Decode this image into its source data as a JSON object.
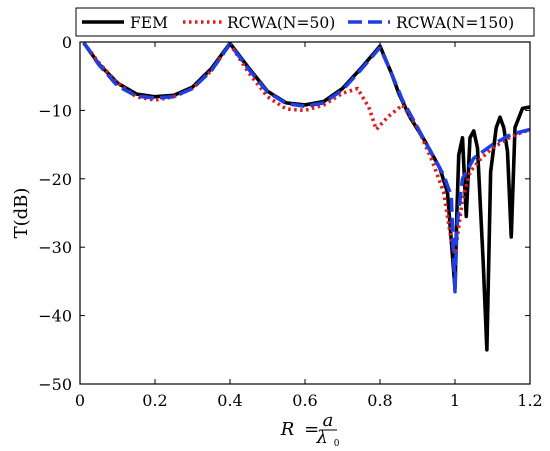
{
  "chart_data": {
    "type": "line",
    "xlabel": "R = a/λ0",
    "xlabel_parts": {
      "lhs": "R",
      "eq": "=",
      "num": "a",
      "den": "λ",
      "den_sub": "0"
    },
    "ylabel": "T(dB)",
    "xlim": [
      0,
      1.2
    ],
    "ylim": [
      -50,
      0
    ],
    "xticks": [
      0,
      0.2,
      0.4,
      0.6,
      0.8,
      1,
      1.2
    ],
    "xtick_labels": [
      "0",
      "0.2",
      "0.4",
      "0.6",
      "0.8",
      "1",
      "1.2"
    ],
    "yticks": [
      0,
      -10,
      -20,
      -30,
      -40,
      -50
    ],
    "ytick_labels": [
      "0",
      "−10",
      "−20",
      "−30",
      "−40",
      "−50"
    ],
    "grid": false,
    "legend_position": "top",
    "series": [
      {
        "name": "FEM",
        "color": "#000000",
        "style": "solid",
        "points": [
          [
            0.01,
            -0.1
          ],
          [
            0.05,
            -3.2
          ],
          [
            0.1,
            -6.0
          ],
          [
            0.15,
            -7.6
          ],
          [
            0.2,
            -8.0
          ],
          [
            0.25,
            -7.8
          ],
          [
            0.3,
            -6.6
          ],
          [
            0.35,
            -3.9
          ],
          [
            0.4,
            -0.2
          ],
          [
            0.45,
            -3.8
          ],
          [
            0.5,
            -7.2
          ],
          [
            0.55,
            -8.9
          ],
          [
            0.6,
            -9.2
          ],
          [
            0.65,
            -8.7
          ],
          [
            0.7,
            -6.8
          ],
          [
            0.75,
            -3.8
          ],
          [
            0.8,
            -0.6
          ],
          [
            0.83,
            -4.5
          ],
          [
            0.85,
            -7.5
          ],
          [
            0.88,
            -11.0
          ],
          [
            0.92,
            -14.5
          ],
          [
            0.96,
            -18.5
          ],
          [
            0.98,
            -22.0
          ],
          [
            1.0,
            -36.0
          ],
          [
            1.005,
            -25.0
          ],
          [
            1.01,
            -16.5
          ],
          [
            1.02,
            -14.0
          ],
          [
            1.03,
            -25.5
          ],
          [
            1.04,
            -14.0
          ],
          [
            1.05,
            -13.0
          ],
          [
            1.06,
            -15.5
          ],
          [
            1.075,
            -32.0
          ],
          [
            1.085,
            -45.0
          ],
          [
            1.095,
            -19.0
          ],
          [
            1.11,
            -12.5
          ],
          [
            1.12,
            -11.0
          ],
          [
            1.13,
            -12.5
          ],
          [
            1.14,
            -16.0
          ],
          [
            1.15,
            -28.5
          ],
          [
            1.16,
            -12.5
          ],
          [
            1.18,
            -9.7
          ],
          [
            1.2,
            -9.5
          ]
        ]
      },
      {
        "name": "RCWA(N=50)",
        "color": "#e41a1c",
        "style": "dotted",
        "points": [
          [
            0.01,
            -0.1
          ],
          [
            0.05,
            -3.0
          ],
          [
            0.1,
            -6.0
          ],
          [
            0.15,
            -8.0
          ],
          [
            0.2,
            -8.5
          ],
          [
            0.25,
            -8.0
          ],
          [
            0.3,
            -6.8
          ],
          [
            0.35,
            -4.2
          ],
          [
            0.4,
            -0.3
          ],
          [
            0.45,
            -4.5
          ],
          [
            0.5,
            -8.0
          ],
          [
            0.55,
            -9.8
          ],
          [
            0.6,
            -10.0
          ],
          [
            0.65,
            -9.2
          ],
          [
            0.7,
            -7.5
          ],
          [
            0.74,
            -6.8
          ],
          [
            0.77,
            -9.5
          ],
          [
            0.79,
            -12.8
          ],
          [
            0.82,
            -11.0
          ],
          [
            0.86,
            -9.2
          ],
          [
            0.9,
            -12.5
          ],
          [
            0.94,
            -17.5
          ],
          [
            0.97,
            -22.0
          ],
          [
            0.99,
            -29.0
          ],
          [
            1.0,
            -31.0
          ],
          [
            1.01,
            -27.0
          ],
          [
            1.02,
            -23.0
          ],
          [
            1.04,
            -19.0
          ],
          [
            1.07,
            -17.0
          ],
          [
            1.1,
            -15.5
          ],
          [
            1.15,
            -13.8
          ],
          [
            1.2,
            -12.8
          ]
        ]
      },
      {
        "name": "RCWA(N=150)",
        "color": "#1f3fe0",
        "style": "dashed",
        "points": [
          [
            0.01,
            -0.1
          ],
          [
            0.05,
            -3.3
          ],
          [
            0.1,
            -6.4
          ],
          [
            0.15,
            -7.9
          ],
          [
            0.2,
            -8.2
          ],
          [
            0.25,
            -8.0
          ],
          [
            0.3,
            -6.8
          ],
          [
            0.35,
            -4.2
          ],
          [
            0.4,
            -0.3
          ],
          [
            0.45,
            -4.0
          ],
          [
            0.5,
            -7.3
          ],
          [
            0.55,
            -9.0
          ],
          [
            0.6,
            -9.4
          ],
          [
            0.65,
            -8.9
          ],
          [
            0.7,
            -7.0
          ],
          [
            0.75,
            -4.0
          ],
          [
            0.8,
            -0.8
          ],
          [
            0.83,
            -4.5
          ],
          [
            0.86,
            -8.5
          ],
          [
            0.9,
            -12.5
          ],
          [
            0.94,
            -16.5
          ],
          [
            0.97,
            -19.5
          ],
          [
            0.99,
            -22.5
          ],
          [
            1.0,
            -36.5
          ],
          [
            1.005,
            -27.0
          ],
          [
            1.02,
            -20.0
          ],
          [
            1.05,
            -17.0
          ],
          [
            1.1,
            -15.0
          ],
          [
            1.15,
            -13.5
          ],
          [
            1.2,
            -12.8
          ]
        ]
      }
    ]
  }
}
